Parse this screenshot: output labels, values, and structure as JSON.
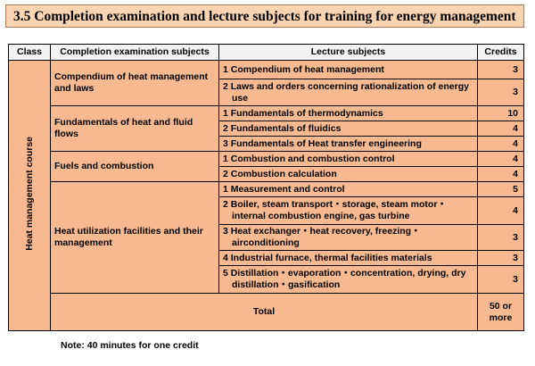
{
  "title": "3.5 Completion examination and lecture subjects for training for energy management",
  "headers": {
    "class": "Class",
    "exam": "Completion examination subjects",
    "lecture": "Lecture subjects",
    "credits": "Credits"
  },
  "class_name": "Heat management course",
  "rows": [
    {
      "exam": "Compendium of heat management and laws",
      "lecture": "1 Compendium of heat management",
      "credits": "3"
    },
    {
      "lecture": "2 Laws and orders concerning rationalization of energy use",
      "credits": "3"
    },
    {
      "exam": "Fundamentals of heat and fluid flows",
      "lecture": "1 Fundamentals of thermodynamics",
      "credits": "10"
    },
    {
      "lecture": "2 Fundamentals of fluidics",
      "credits": "4"
    },
    {
      "lecture": "3 Fundamentals of Heat transfer engineering",
      "credits": "4"
    },
    {
      "exam": "Fuels and combustion",
      "lecture": "1 Combustion and combustion control",
      "credits": "4"
    },
    {
      "lecture": "2 Combustion calculation",
      "credits": "4"
    },
    {
      "exam": "Heat utilization facilities and their management",
      "lecture": "1 Measurement and control",
      "credits": "5"
    },
    {
      "lecture": "2 Boiler, steam transport・storage, steam motor・internal combustion engine, gas turbine",
      "credits": "4"
    },
    {
      "lecture": "3 Heat exchanger・heat recovery, freezing・airconditioning",
      "credits": "3"
    },
    {
      "lecture": "4 Industrial furnace, thermal facilities materials",
      "credits": "3"
    },
    {
      "lecture": "5 Distillation・evaporation・concentration, drying, dry distillation・gasification",
      "credits": "3"
    }
  ],
  "total": {
    "label": "Total",
    "credits": "50 or more"
  },
  "note": "Note: 40 minutes for one credit"
}
